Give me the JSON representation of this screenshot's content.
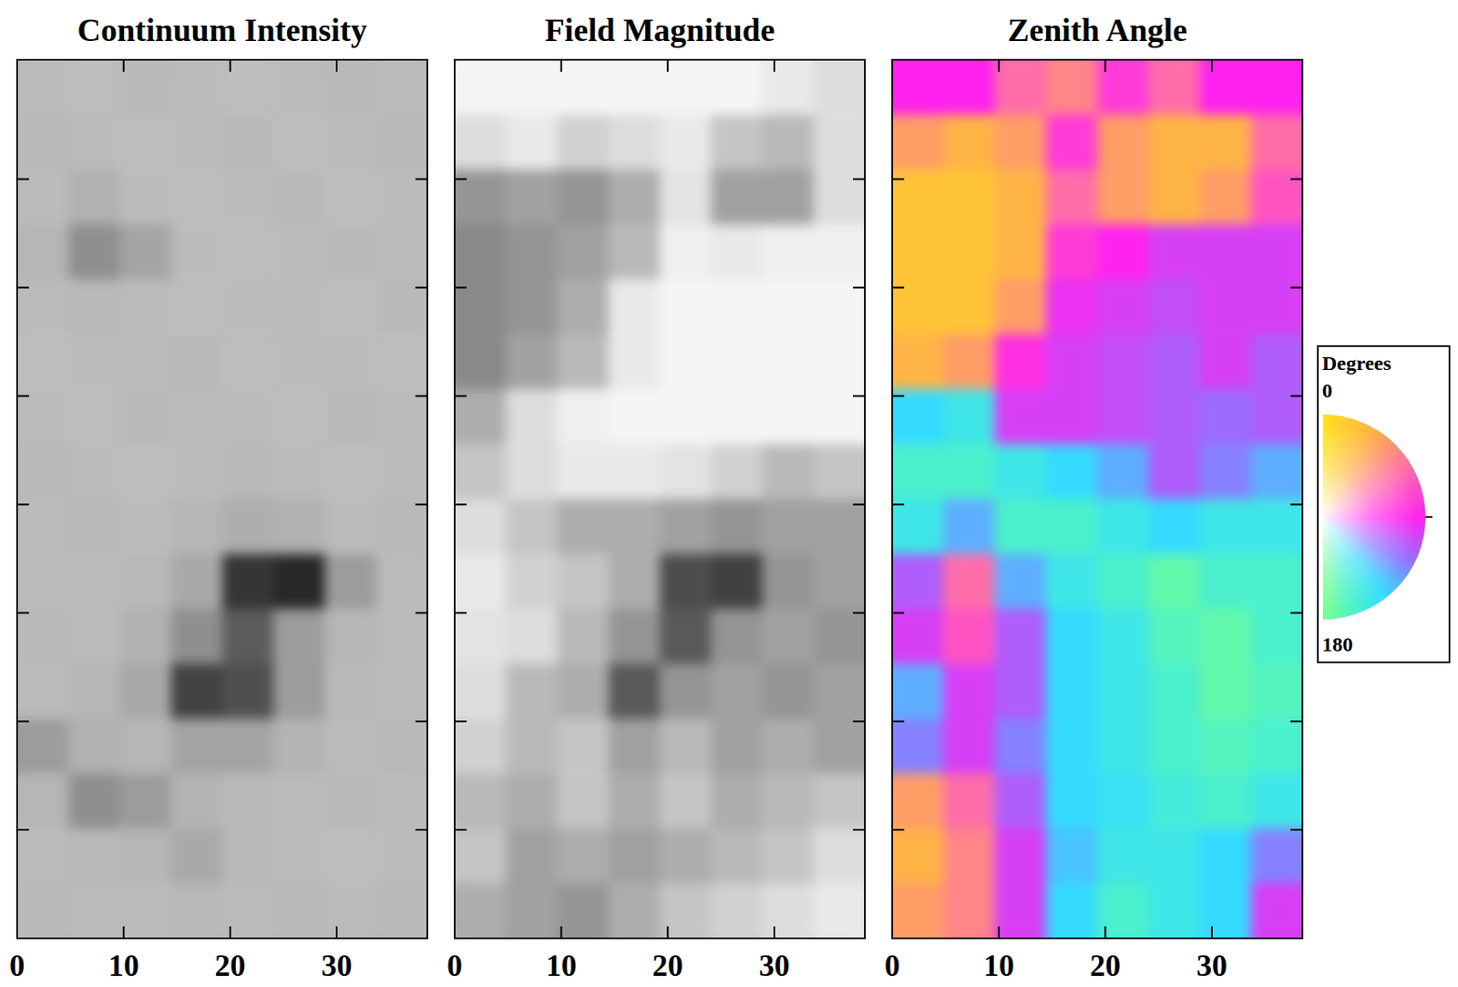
{
  "chart_data": [
    {
      "type": "heatmap",
      "title": "Continuum Intensity",
      "color": "gray",
      "xlim": [
        0,
        38.5
      ],
      "xticks": [
        0,
        10,
        20,
        30
      ],
      "ylim": [
        0,
        81
      ],
      "yticks": [
        10,
        20,
        30,
        40,
        50,
        60,
        70
      ],
      "tick_labels": "x",
      "cells": [
        [
          0.97,
          0.98,
          0.96,
          0.97,
          0.98,
          0.97,
          0.96,
          0.97
        ],
        [
          0.96,
          0.97,
          0.98,
          0.97,
          0.96,
          0.98,
          0.97,
          0.96
        ],
        [
          0.97,
          0.93,
          0.97,
          0.98,
          0.97,
          0.96,
          0.98,
          0.97
        ],
        [
          0.95,
          0.8,
          0.88,
          0.97,
          0.98,
          0.97,
          0.96,
          0.97
        ],
        [
          0.97,
          0.96,
          0.97,
          0.98,
          0.97,
          0.97,
          0.98,
          0.96
        ],
        [
          0.98,
          0.97,
          0.97,
          0.96,
          0.98,
          0.97,
          0.97,
          0.98
        ],
        [
          0.97,
          0.98,
          0.96,
          0.97,
          0.97,
          0.98,
          0.96,
          0.97
        ],
        [
          0.96,
          0.97,
          0.98,
          0.97,
          0.96,
          0.97,
          0.98,
          0.97
        ],
        [
          0.97,
          0.96,
          0.97,
          0.95,
          0.92,
          0.93,
          0.97,
          0.96
        ],
        [
          0.97,
          0.97,
          0.96,
          0.9,
          0.45,
          0.4,
          0.85,
          0.97
        ],
        [
          0.96,
          0.97,
          0.93,
          0.8,
          0.6,
          0.85,
          0.95,
          0.97
        ],
        [
          0.97,
          0.95,
          0.9,
          0.5,
          0.55,
          0.85,
          0.96,
          0.97
        ],
        [
          0.85,
          0.93,
          0.95,
          0.88,
          0.88,
          0.94,
          0.97,
          0.96
        ],
        [
          0.95,
          0.8,
          0.85,
          0.94,
          0.96,
          0.97,
          0.96,
          0.97
        ],
        [
          0.97,
          0.96,
          0.95,
          0.9,
          0.96,
          0.97,
          0.98,
          0.97
        ],
        [
          0.96,
          0.97,
          0.97,
          0.96,
          0.97,
          0.96,
          0.97,
          0.96
        ]
      ]
    },
    {
      "type": "heatmap",
      "title": "Field Magnitude",
      "color": "gray_r",
      "xlim": [
        0,
        38.5
      ],
      "xticks": [
        0,
        10,
        20,
        30
      ],
      "ylim": [
        0,
        81
      ],
      "yticks": [
        10,
        20,
        30,
        40,
        50,
        60,
        70
      ],
      "tick_labels": "x",
      "cells": [
        [
          100,
          100,
          100,
          100,
          100,
          100,
          200,
          300
        ],
        [
          300,
          200,
          400,
          300,
          200,
          500,
          600,
          300
        ],
        [
          900,
          800,
          900,
          700,
          250,
          800,
          800,
          300
        ],
        [
          1000,
          900,
          800,
          600,
          150,
          200,
          150,
          150
        ],
        [
          1000,
          900,
          700,
          200,
          100,
          100,
          100,
          100
        ],
        [
          1000,
          800,
          600,
          200,
          100,
          100,
          100,
          100
        ],
        [
          700,
          300,
          150,
          100,
          100,
          100,
          100,
          100
        ],
        [
          500,
          300,
          200,
          200,
          250,
          400,
          600,
          500
        ],
        [
          300,
          500,
          700,
          700,
          800,
          900,
          800,
          800
        ],
        [
          200,
          400,
          500,
          700,
          1500,
          1600,
          900,
          800
        ],
        [
          250,
          300,
          600,
          900,
          1400,
          900,
          800,
          900
        ],
        [
          300,
          600,
          700,
          1400,
          900,
          800,
          900,
          800
        ],
        [
          400,
          600,
          500,
          800,
          600,
          800,
          700,
          800
        ],
        [
          600,
          700,
          500,
          700,
          500,
          700,
          600,
          500
        ],
        [
          500,
          800,
          700,
          800,
          700,
          600,
          500,
          300
        ],
        [
          700,
          800,
          900,
          700,
          500,
          400,
          300,
          200
        ]
      ]
    },
    {
      "type": "heatmap",
      "title": "Zenith Angle",
      "color": "wheel",
      "xlim": [
        0,
        38.5
      ],
      "xticks": [
        0,
        10,
        20,
        30
      ],
      "ylim": [
        0,
        81
      ],
      "yticks": [
        10,
        20,
        30,
        40,
        50,
        60,
        70
      ],
      "tick_labels": "x",
      "colorbar": {
        "title": "Degrees",
        "range": [
          0,
          180
        ],
        "ticks": [
          0,
          180
        ]
      },
      "cells": [
        [
          90,
          90,
          60,
          50,
          80,
          60,
          90,
          90
        ],
        [
          40,
          30,
          40,
          80,
          40,
          30,
          30,
          60
        ],
        [
          20,
          20,
          30,
          60,
          40,
          30,
          40,
          70
        ],
        [
          20,
          20,
          30,
          80,
          90,
          100,
          100,
          100
        ],
        [
          20,
          20,
          40,
          95,
          100,
          105,
          100,
          100
        ],
        [
          30,
          40,
          85,
          100,
          105,
          110,
          100,
          110
        ],
        [
          140,
          150,
          100,
          100,
          105,
          110,
          115,
          110
        ],
        [
          160,
          160,
          150,
          140,
          130,
          110,
          120,
          130
        ],
        [
          150,
          130,
          160,
          160,
          150,
          140,
          150,
          150
        ],
        [
          110,
          60,
          130,
          150,
          160,
          170,
          160,
          160
        ],
        [
          100,
          70,
          110,
          140,
          150,
          165,
          170,
          160
        ],
        [
          130,
          100,
          110,
          140,
          150,
          160,
          170,
          165
        ],
        [
          120,
          100,
          120,
          140,
          150,
          160,
          165,
          160
        ],
        [
          40,
          60,
          110,
          140,
          145,
          155,
          160,
          150
        ],
        [
          30,
          50,
          100,
          135,
          150,
          150,
          140,
          120
        ],
        [
          40,
          50,
          100,
          140,
          160,
          150,
          140,
          100
        ]
      ]
    }
  ]
}
